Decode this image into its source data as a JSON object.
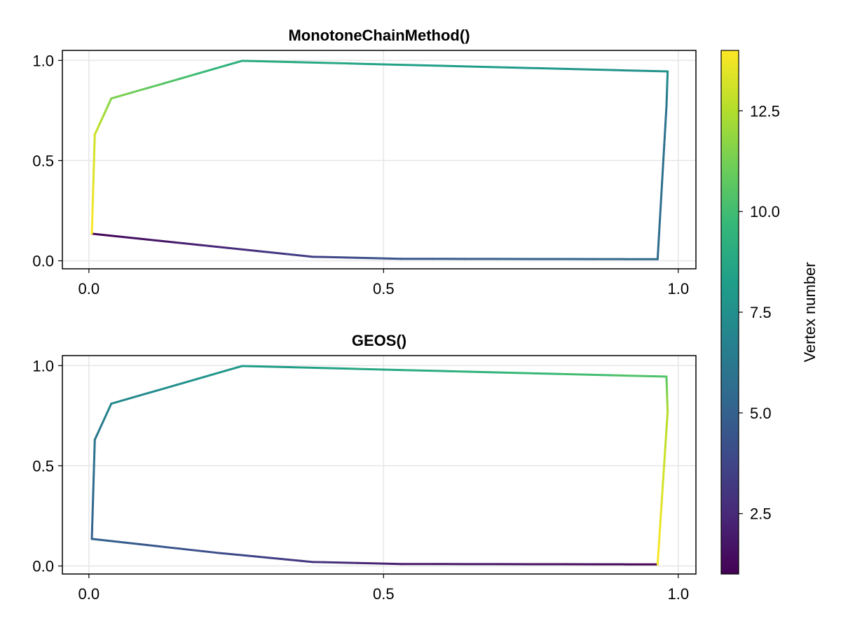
{
  "chart_data": [
    {
      "type": "line",
      "title": "MonotoneChainMethod()",
      "xlabel": "",
      "ylabel": "",
      "xlim": [
        -0.045,
        1.03
      ],
      "ylim": [
        -0.04,
        1.05
      ],
      "xticks": [
        "0.0",
        "0.5",
        "1.0"
      ],
      "yticks": [
        "0.0",
        "0.5",
        "1.0"
      ],
      "grid": true,
      "series": [
        {
          "x": [
            0.005,
            0.38,
            0.53,
            0.965,
            0.98,
            0.982,
            0.26,
            0.038,
            0.01,
            0.005
          ],
          "y": [
            0.135,
            0.02,
            0.01,
            0.008,
            0.77,
            0.945,
            0.998,
            0.81,
            0.63,
            0.135
          ],
          "colors_by_vertex": [
            1,
            3.5,
            4.5,
            5.5,
            6,
            7.5,
            9,
            11.5,
            13,
            14
          ]
        }
      ]
    },
    {
      "type": "line",
      "title": "GEOS()",
      "xlabel": "",
      "ylabel": "",
      "xlim": [
        -0.045,
        1.03
      ],
      "ylim": [
        -0.04,
        1.05
      ],
      "xticks": [
        "0.0",
        "0.5",
        "1.0"
      ],
      "yticks": [
        "0.0",
        "0.5",
        "1.0"
      ],
      "grid": true,
      "series": [
        {
          "x": [
            0.965,
            0.53,
            0.38,
            0.22,
            0.005,
            0.01,
            0.038,
            0.26,
            0.98,
            0.982,
            0.965
          ],
          "y": [
            0.008,
            0.01,
            0.02,
            0.065,
            0.135,
            0.63,
            0.81,
            0.998,
            0.945,
            0.77,
            0.008
          ],
          "colors_by_vertex": [
            1,
            2,
            3,
            4,
            5,
            6,
            7,
            8,
            10.5,
            12.5,
            14
          ]
        }
      ]
    }
  ],
  "colorbar": {
    "label": "Vertex number",
    "range": [
      1,
      14
    ],
    "ticks": [
      "2.5",
      "5.0",
      "7.5",
      "10.0",
      "12.5"
    ],
    "tick_values": [
      2.5,
      5.0,
      7.5,
      10.0,
      12.5
    ],
    "colormap": "viridis",
    "stops": [
      "#440154",
      "#482878",
      "#3e4989",
      "#31688e",
      "#26828e",
      "#1f9e89",
      "#35b779",
      "#6ece58",
      "#b5de2b",
      "#fde725"
    ]
  }
}
